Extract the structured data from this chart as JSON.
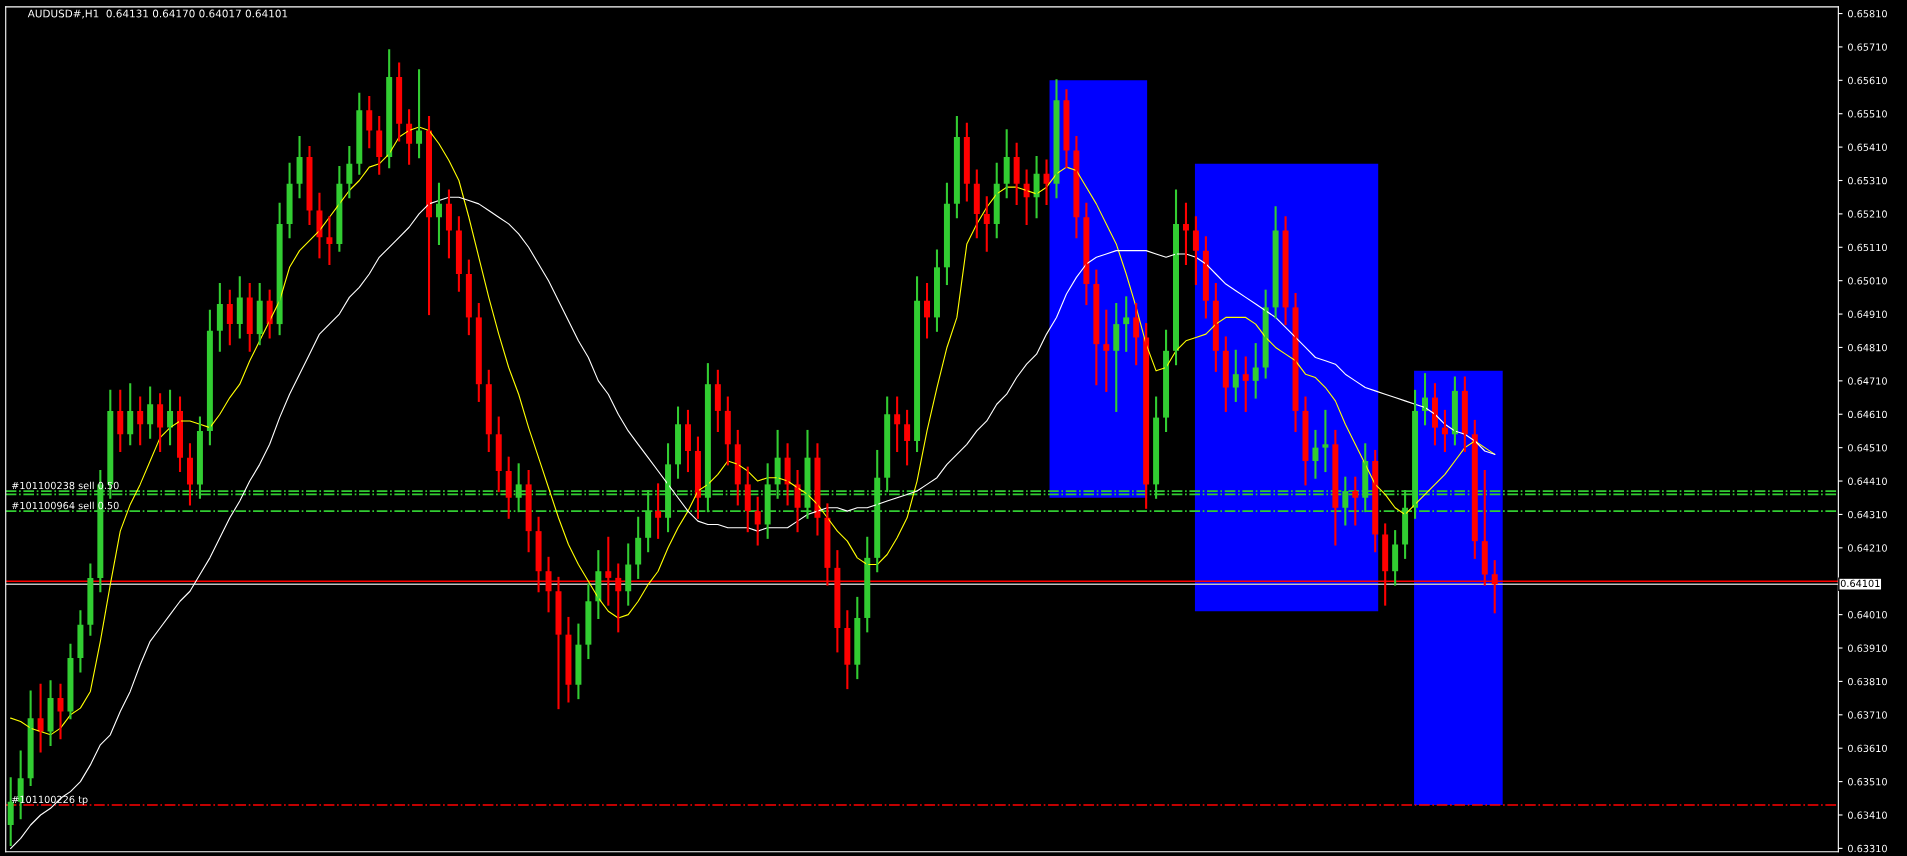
{
  "chart_data": {
    "type": "candlestick",
    "title": "AUDUSD#,H1  0.64131 0.64170 0.64017 0.64101",
    "categories": [
      null,
      null,
      null,
      null,
      null,
      null,
      null,
      null,
      null,
      null,
      null,
      null,
      null,
      null,
      null,
      null,
      null,
      null,
      null,
      null,
      null,
      null,
      null,
      null,
      null,
      null,
      null,
      null,
      null,
      null,
      null,
      null,
      null,
      null,
      null,
      null,
      null,
      null,
      null,
      null,
      null,
      null,
      null,
      null,
      null,
      null,
      null,
      null,
      null,
      null,
      null,
      null,
      null,
      null,
      null,
      null,
      null,
      null,
      null,
      null,
      null,
      null,
      null,
      null,
      null,
      null,
      null,
      null,
      null,
      null,
      null,
      null,
      null,
      null,
      null,
      null,
      null,
      null,
      null,
      null,
      null,
      null,
      null,
      null,
      null,
      null,
      null,
      null,
      null,
      null,
      null,
      null,
      null,
      null,
      null,
      null,
      null,
      null,
      null,
      null,
      null,
      null,
      null,
      null,
      null,
      null,
      null,
      null,
      null,
      null,
      null,
      null,
      null,
      null,
      null,
      null,
      null,
      null,
      null,
      null,
      null,
      null,
      null,
      null,
      null,
      null,
      null,
      null,
      null,
      null,
      null,
      null,
      null,
      null,
      null,
      null,
      null,
      null,
      null,
      null,
      null,
      null,
      null,
      null,
      null,
      null,
      null,
      null,
      null,
      null,
      null,
      null,
      null,
      null,
      null,
      null,
      null,
      null,
      null,
      null,
      null,
      null,
      null,
      null,
      null,
      null,
      null,
      null,
      null,
      null,
      null,
      null,
      null,
      null,
      null,
      null,
      null,
      null,
      null,
      null,
      null,
      null,
      null,
      null
    ],
    "ohlc": [
      [
        0.6338,
        0.6352,
        0.6332,
        0.6345
      ],
      [
        0.6345,
        0.636,
        0.634,
        0.6352
      ],
      [
        0.6352,
        0.6378,
        0.635,
        0.637
      ],
      [
        0.637,
        0.638,
        0.636,
        0.6366
      ],
      [
        0.6366,
        0.6381,
        0.6362,
        0.6376
      ],
      [
        0.6376,
        0.638,
        0.6364,
        0.6372
      ],
      [
        0.6372,
        0.6392,
        0.637,
        0.6388
      ],
      [
        0.6388,
        0.6402,
        0.6384,
        0.6398
      ],
      [
        0.6398,
        0.6416,
        0.6395,
        0.6412
      ],
      [
        0.6412,
        0.6444,
        0.6408,
        0.644
      ],
      [
        0.644,
        0.6468,
        0.6436,
        0.6462
      ],
      [
        0.6462,
        0.6468,
        0.645,
        0.6455
      ],
      [
        0.6455,
        0.647,
        0.6452,
        0.6462
      ],
      [
        0.6462,
        0.6466,
        0.6452,
        0.6458
      ],
      [
        0.6458,
        0.6469,
        0.6454,
        0.6464
      ],
      [
        0.6464,
        0.6467,
        0.645,
        0.6457
      ],
      [
        0.6457,
        0.6468,
        0.6452,
        0.6462
      ],
      [
        0.6462,
        0.6466,
        0.6444,
        0.6448
      ],
      [
        0.6448,
        0.6452,
        0.6434,
        0.644
      ],
      [
        0.644,
        0.646,
        0.6436,
        0.6456
      ],
      [
        0.6456,
        0.6492,
        0.6452,
        0.6486
      ],
      [
        0.6486,
        0.65,
        0.648,
        0.6494
      ],
      [
        0.6494,
        0.6498,
        0.6482,
        0.6488
      ],
      [
        0.6488,
        0.6502,
        0.6484,
        0.6496
      ],
      [
        0.6496,
        0.65,
        0.648,
        0.6485
      ],
      [
        0.6485,
        0.65,
        0.6482,
        0.6495
      ],
      [
        0.6495,
        0.6498,
        0.6484,
        0.6488
      ],
      [
        0.6488,
        0.6524,
        0.6485,
        0.6518
      ],
      [
        0.6518,
        0.6536,
        0.6514,
        0.653
      ],
      [
        0.653,
        0.6544,
        0.6526,
        0.6538
      ],
      [
        0.6538,
        0.6541,
        0.6518,
        0.6522
      ],
      [
        0.6522,
        0.6527,
        0.6508,
        0.6514
      ],
      [
        0.6514,
        0.652,
        0.6506,
        0.6512
      ],
      [
        0.6512,
        0.6535,
        0.651,
        0.653
      ],
      [
        0.653,
        0.6541,
        0.6526,
        0.6536
      ],
      [
        0.6536,
        0.6557,
        0.6533,
        0.6552
      ],
      [
        0.6552,
        0.6556,
        0.6541,
        0.6546
      ],
      [
        0.6546,
        0.655,
        0.6533,
        0.6538
      ],
      [
        0.6538,
        0.657,
        0.6535,
        0.6562
      ],
      [
        0.6562,
        0.6566,
        0.6543,
        0.6548
      ],
      [
        0.6548,
        0.6552,
        0.6536,
        0.6542
      ],
      [
        0.6542,
        0.6564,
        0.6538,
        0.6546
      ],
      [
        0.6546,
        0.655,
        0.6491,
        0.652
      ],
      [
        0.652,
        0.653,
        0.6512,
        0.6524
      ],
      [
        0.6524,
        0.6528,
        0.6508,
        0.6516
      ],
      [
        0.6516,
        0.652,
        0.6498,
        0.6503
      ],
      [
        0.6503,
        0.6507,
        0.6485,
        0.649
      ],
      [
        0.649,
        0.6494,
        0.6465,
        0.647
      ],
      [
        0.647,
        0.6474,
        0.645,
        0.6455
      ],
      [
        0.6455,
        0.646,
        0.6438,
        0.6444
      ],
      [
        0.6444,
        0.6448,
        0.643,
        0.6436
      ],
      [
        0.6436,
        0.6446,
        0.6432,
        0.644
      ],
      [
        0.644,
        0.6444,
        0.642,
        0.6426
      ],
      [
        0.6426,
        0.643,
        0.6408,
        0.6414
      ],
      [
        0.6414,
        0.6418,
        0.6402,
        0.6408
      ],
      [
        0.6408,
        0.6412,
        0.6373,
        0.6395
      ],
      [
        0.6395,
        0.64,
        0.6375,
        0.638
      ],
      [
        0.638,
        0.6398,
        0.6376,
        0.6392
      ],
      [
        0.6392,
        0.641,
        0.6388,
        0.6405
      ],
      [
        0.6405,
        0.642,
        0.64,
        0.6414
      ],
      [
        0.6414,
        0.6424,
        0.6404,
        0.6412
      ],
      [
        0.6412,
        0.6416,
        0.6396,
        0.6408
      ],
      [
        0.6408,
        0.6422,
        0.6404,
        0.6416
      ],
      [
        0.6416,
        0.643,
        0.6412,
        0.6424
      ],
      [
        0.6424,
        0.6438,
        0.642,
        0.6432
      ],
      [
        0.6432,
        0.644,
        0.6424,
        0.643
      ],
      [
        0.643,
        0.6452,
        0.6426,
        0.6446
      ],
      [
        0.6446,
        0.6463,
        0.6442,
        0.6458
      ],
      [
        0.6458,
        0.6462,
        0.6444,
        0.645
      ],
      [
        0.645,
        0.6454,
        0.643,
        0.6436
      ],
      [
        0.6436,
        0.6476,
        0.6432,
        0.647
      ],
      [
        0.647,
        0.6474,
        0.6456,
        0.6462
      ],
      [
        0.6462,
        0.6466,
        0.6446,
        0.6452
      ],
      [
        0.6452,
        0.6456,
        0.6434,
        0.644
      ],
      [
        0.644,
        0.6445,
        0.6426,
        0.6432
      ],
      [
        0.6432,
        0.6436,
        0.6422,
        0.6428
      ],
      [
        0.6428,
        0.6446,
        0.6424,
        0.644
      ],
      [
        0.644,
        0.6456,
        0.6436,
        0.6448
      ],
      [
        0.6448,
        0.6452,
        0.6434,
        0.644
      ],
      [
        0.644,
        0.6444,
        0.6426,
        0.6433
      ],
      [
        0.6433,
        0.6456,
        0.643,
        0.6448
      ],
      [
        0.6448,
        0.6452,
        0.6425,
        0.643
      ],
      [
        0.643,
        0.6434,
        0.641,
        0.6415
      ],
      [
        0.6415,
        0.642,
        0.639,
        0.6397
      ],
      [
        0.6397,
        0.6402,
        0.6379,
        0.6386
      ],
      [
        0.6386,
        0.6406,
        0.6382,
        0.64
      ],
      [
        0.64,
        0.6424,
        0.6396,
        0.6418
      ],
      [
        0.6418,
        0.645,
        0.6414,
        0.6442
      ],
      [
        0.6442,
        0.6466,
        0.6438,
        0.6461
      ],
      [
        0.6461,
        0.6466,
        0.645,
        0.6458
      ],
      [
        0.6458,
        0.6462,
        0.6446,
        0.6453
      ],
      [
        0.6453,
        0.6502,
        0.645,
        0.6495
      ],
      [
        0.6495,
        0.65,
        0.6484,
        0.649
      ],
      [
        0.649,
        0.651,
        0.6486,
        0.6505
      ],
      [
        0.6505,
        0.653,
        0.65,
        0.6524
      ],
      [
        0.6524,
        0.655,
        0.652,
        0.6544
      ],
      [
        0.6544,
        0.6548,
        0.6525,
        0.653
      ],
      [
        0.653,
        0.6534,
        0.6514,
        0.6521
      ],
      [
        0.6521,
        0.6526,
        0.651,
        0.6518
      ],
      [
        0.6518,
        0.6536,
        0.6514,
        0.653
      ],
      [
        0.653,
        0.6546,
        0.6526,
        0.6538
      ],
      [
        0.6538,
        0.6542,
        0.6524,
        0.653
      ],
      [
        0.653,
        0.6534,
        0.6518,
        0.6526
      ],
      [
        0.6526,
        0.6538,
        0.652,
        0.6533
      ],
      [
        0.6533,
        0.6537,
        0.6524,
        0.653
      ],
      [
        0.653,
        0.6561,
        0.6526,
        0.6555
      ],
      [
        0.6555,
        0.6558,
        0.6535,
        0.654
      ],
      [
        0.654,
        0.6544,
        0.6514,
        0.652
      ],
      [
        0.652,
        0.6524,
        0.6494,
        0.65
      ],
      [
        0.65,
        0.6504,
        0.647,
        0.6482
      ],
      [
        0.6482,
        0.6492,
        0.6468,
        0.648
      ],
      [
        0.648,
        0.6494,
        0.6462,
        0.6488
      ],
      [
        0.6488,
        0.6496,
        0.648,
        0.649
      ],
      [
        0.649,
        0.6494,
        0.6476,
        0.6484
      ],
      [
        0.6484,
        0.6488,
        0.6433,
        0.644
      ],
      [
        0.644,
        0.6466,
        0.6436,
        0.646
      ],
      [
        0.646,
        0.6486,
        0.6456,
        0.648
      ],
      [
        0.648,
        0.6528,
        0.6476,
        0.6518
      ],
      [
        0.6518,
        0.6524,
        0.6506,
        0.6516
      ],
      [
        0.6516,
        0.652,
        0.65,
        0.651
      ],
      [
        0.651,
        0.6514,
        0.649,
        0.6495
      ],
      [
        0.6495,
        0.65,
        0.6474,
        0.648
      ],
      [
        0.648,
        0.6484,
        0.6462,
        0.6469
      ],
      [
        0.6469,
        0.648,
        0.6465,
        0.6473
      ],
      [
        0.6473,
        0.6478,
        0.6462,
        0.6471
      ],
      [
        0.6471,
        0.6482,
        0.6466,
        0.6475
      ],
      [
        0.6475,
        0.6498,
        0.6472,
        0.6493
      ],
      [
        0.6493,
        0.6523,
        0.649,
        0.6516
      ],
      [
        0.6516,
        0.652,
        0.6488,
        0.6493
      ],
      [
        0.6493,
        0.6497,
        0.6456,
        0.6462
      ],
      [
        0.6462,
        0.6466,
        0.644,
        0.6447
      ],
      [
        0.6447,
        0.6456,
        0.6442,
        0.6451
      ],
      [
        0.6451,
        0.6462,
        0.6444,
        0.6452
      ],
      [
        0.6452,
        0.6456,
        0.6422,
        0.6433
      ],
      [
        0.6433,
        0.6442,
        0.6428,
        0.6438
      ],
      [
        0.6438,
        0.6442,
        0.6428,
        0.6436
      ],
      [
        0.6436,
        0.6452,
        0.6432,
        0.6447
      ],
      [
        0.6447,
        0.645,
        0.642,
        0.6425
      ],
      [
        0.6425,
        0.6428,
        0.6404,
        0.6414
      ],
      [
        0.6414,
        0.6426,
        0.641,
        0.6422
      ],
      [
        0.6422,
        0.6438,
        0.6418,
        0.6433
      ],
      [
        0.6433,
        0.6468,
        0.643,
        0.6462
      ],
      [
        0.6462,
        0.6473,
        0.6458,
        0.6466
      ],
      [
        0.6466,
        0.647,
        0.6452,
        0.6457
      ],
      [
        0.6457,
        0.6462,
        0.645,
        0.6455
      ],
      [
        0.6455,
        0.6472,
        0.6452,
        0.6468
      ],
      [
        0.6468,
        0.6472,
        0.645,
        0.6455
      ],
      [
        0.6455,
        0.6459,
        0.6418,
        0.6423
      ],
      [
        0.6423,
        0.6444,
        0.641,
        0.6413
      ],
      [
        0.64131,
        0.6417,
        0.64017,
        0.64101
      ],
      null,
      null,
      null,
      null,
      null,
      null,
      null,
      null,
      null,
      null,
      null,
      null,
      null,
      null,
      null,
      null,
      null,
      null,
      null,
      null,
      null,
      null,
      null,
      null,
      null,
      null,
      null,
      null,
      null,
      null,
      null,
      null,
      null,
      null
    ],
    "series": [
      {
        "type": "line",
        "color": "#ffff00",
        "values": [
          0.637,
          0.6369,
          0.6367,
          0.6366,
          0.6365,
          0.6367,
          0.6371,
          0.6373,
          0.6378,
          0.6393,
          0.641,
          0.6426,
          0.6434,
          0.644,
          0.6447,
          0.6454,
          0.6457,
          0.6459,
          0.6459,
          0.6458,
          0.6457,
          0.6461,
          0.6466,
          0.647,
          0.6477,
          0.6483,
          0.6489,
          0.6495,
          0.6505,
          0.651,
          0.6513,
          0.6516,
          0.652,
          0.6524,
          0.6528,
          0.6531,
          0.6535,
          0.6536,
          0.6539,
          0.6544,
          0.6546,
          0.6547,
          0.6546,
          0.6542,
          0.6537,
          0.6531,
          0.652,
          0.6508,
          0.6496,
          0.6485,
          0.6475,
          0.6467,
          0.6457,
          0.6448,
          0.6439,
          0.643,
          0.6422,
          0.6416,
          0.6411,
          0.6406,
          0.6402,
          0.64,
          0.6401,
          0.6405,
          0.641,
          0.6414,
          0.6421,
          0.6427,
          0.6432,
          0.6438,
          0.644,
          0.6443,
          0.6447,
          0.6446,
          0.6444,
          0.6441,
          0.6442,
          0.6442,
          0.6441,
          0.6439,
          0.6437,
          0.6434,
          0.643,
          0.6426,
          0.6423,
          0.6418,
          0.6416,
          0.6416,
          0.6419,
          0.6424,
          0.643,
          0.6441,
          0.6456,
          0.6469,
          0.6481,
          0.649,
          0.6512,
          0.6518,
          0.6523,
          0.6527,
          0.6529,
          0.6529,
          0.6528,
          0.6527,
          0.6529,
          0.6533,
          0.6535,
          0.6534,
          0.6529,
          0.6524,
          0.6518,
          0.6512,
          0.6503,
          0.6493,
          0.6482,
          0.6474,
          0.6475,
          0.648,
          0.6483,
          0.6484,
          0.6485,
          0.6488,
          0.649,
          0.649,
          0.649,
          0.6488,
          0.6484,
          0.6481,
          0.6479,
          0.6477,
          0.6473,
          0.6472,
          0.6469,
          0.6465,
          0.6458,
          0.6452,
          0.6446,
          0.644,
          0.6437,
          0.6433,
          0.6431,
          0.6434,
          0.6437,
          0.644,
          0.6443,
          0.6447,
          0.6451,
          0.6453,
          0.6451,
          0.6449,
          null,
          null,
          null,
          null,
          null,
          null,
          null,
          null,
          null,
          null,
          null,
          null,
          null,
          null,
          null,
          null,
          null,
          null,
          null,
          null,
          null,
          null,
          null,
          null,
          null,
          null,
          null,
          null,
          null,
          null,
          null,
          null,
          null,
          null
        ]
      },
      {
        "type": "line",
        "color": "#ffffff",
        "values": [
          0.6331,
          0.6334,
          0.6338,
          0.6341,
          0.6343,
          0.6346,
          0.6348,
          0.6351,
          0.6356,
          0.6362,
          0.6365,
          0.6372,
          0.6378,
          0.6386,
          0.6393,
          0.6397,
          0.6401,
          0.6405,
          0.6408,
          0.6413,
          0.6418,
          0.6424,
          0.643,
          0.6435,
          0.6441,
          0.6446,
          0.6452,
          0.646,
          0.6467,
          0.6473,
          0.6479,
          0.6485,
          0.6488,
          0.6491,
          0.6496,
          0.6499,
          0.6503,
          0.6508,
          0.6511,
          0.6514,
          0.6517,
          0.6521,
          0.6524,
          0.6525,
          0.6526,
          0.6526,
          0.6525,
          0.6524,
          0.6522,
          0.652,
          0.6518,
          0.6515,
          0.6511,
          0.6506,
          0.6501,
          0.6495,
          0.6489,
          0.6483,
          0.6478,
          0.6471,
          0.6467,
          0.6461,
          0.6456,
          0.6452,
          0.6448,
          0.6444,
          0.644,
          0.6436,
          0.6432,
          0.6429,
          0.6428,
          0.6428,
          0.6427,
          0.6427,
          0.6427,
          0.6426,
          0.6427,
          0.6427,
          0.6427,
          0.6429,
          0.6431,
          0.6432,
          0.6433,
          0.6433,
          0.6432,
          0.6433,
          0.6433,
          0.6434,
          0.6435,
          0.6436,
          0.6437,
          0.6438,
          0.644,
          0.6442,
          0.6446,
          0.6449,
          0.6452,
          0.6456,
          0.6459,
          0.6464,
          0.6467,
          0.6472,
          0.6476,
          0.6479,
          0.6485,
          0.649,
          0.6497,
          0.6502,
          0.6506,
          0.6508,
          0.6509,
          0.651,
          0.651,
          0.651,
          0.651,
          0.6509,
          0.6508,
          0.6509,
          0.6509,
          0.6508,
          0.6506,
          0.6503,
          0.65,
          0.6498,
          0.6496,
          0.6494,
          0.6492,
          0.649,
          0.6487,
          0.6484,
          0.6481,
          0.6478,
          0.6477,
          0.6476,
          0.6473,
          0.6471,
          0.6469,
          0.6468,
          0.6467,
          0.6466,
          0.6465,
          0.6464,
          0.6463,
          0.6461,
          0.6458,
          0.6456,
          0.6455,
          0.6453,
          0.645,
          0.6449,
          null,
          null,
          null,
          null,
          null,
          null,
          null,
          null,
          null,
          null,
          null,
          null,
          null,
          null,
          null,
          null,
          null,
          null,
          null,
          null,
          null,
          null,
          null,
          null,
          null,
          null,
          null,
          null,
          null,
          null,
          null,
          null,
          null,
          null
        ]
      }
    ],
    "ylim": [
      0.633,
      0.6583
    ],
    "yticks": [
      {
        "value": 0.6331,
        "label": "0.63310"
      },
      {
        "value": 0.6341,
        "label": "0.63410"
      },
      {
        "value": 0.6351,
        "label": "0.63510"
      },
      {
        "value": 0.6361,
        "label": "0.63610"
      },
      {
        "value": 0.6371,
        "label": "0.63710"
      },
      {
        "value": 0.6381,
        "label": "0.63810"
      },
      {
        "value": 0.6391,
        "label": "0.63910"
      },
      {
        "value": 0.6401,
        "label": "0.64010"
      },
      {
        "value": 0.6421,
        "label": "0.64210"
      },
      {
        "value": 0.6431,
        "label": "0.64310"
      },
      {
        "value": 0.6441,
        "label": "0.64410"
      },
      {
        "value": 0.6451,
        "label": "0.64510"
      },
      {
        "value": 0.6461,
        "label": "0.64610"
      },
      {
        "value": 0.6471,
        "label": "0.64710"
      },
      {
        "value": 0.6481,
        "label": "0.64810"
      },
      {
        "value": 0.6491,
        "label": "0.64910"
      },
      {
        "value": 0.6501,
        "label": "0.65010"
      },
      {
        "value": 0.6511,
        "label": "0.65110"
      },
      {
        "value": 0.6521,
        "label": "0.65210"
      },
      {
        "value": 0.6531,
        "label": "0.65310"
      },
      {
        "value": 0.6541,
        "label": "0.65410"
      },
      {
        "value": 0.6551,
        "label": "0.65510"
      },
      {
        "value": 0.6561,
        "label": "0.65610"
      },
      {
        "value": 0.6571,
        "label": "0.65710"
      },
      {
        "value": 0.6581,
        "label": "0.65810"
      }
    ],
    "tick_labels": "y",
    "ref_lines": [
      {
        "axis": "y",
        "value": 0.6438,
        "label": "#101100238 sell 0.50",
        "color": "#32cd32",
        "line_style": "dashdot"
      },
      {
        "axis": "y",
        "value": 0.6437,
        "color": "#32cd32",
        "line_style": "dashdot"
      },
      {
        "axis": "y",
        "value": 0.6432,
        "label": "#101100964 sell 0.50",
        "color": "#32cd32",
        "line_style": "dashdot"
      },
      {
        "axis": "y",
        "value": 0.6344,
        "label": "#101100226 tp",
        "color": "#ff0000",
        "line_style": "dashdot"
      },
      {
        "axis": "y",
        "value": 0.6411,
        "color": "#ff0000",
        "line_style": "solid"
      },
      {
        "axis": "y",
        "value": 0.64101,
        "label": "0.64101",
        "color": "#c0c0c0",
        "line_style": "solid"
      }
    ]
  }
}
